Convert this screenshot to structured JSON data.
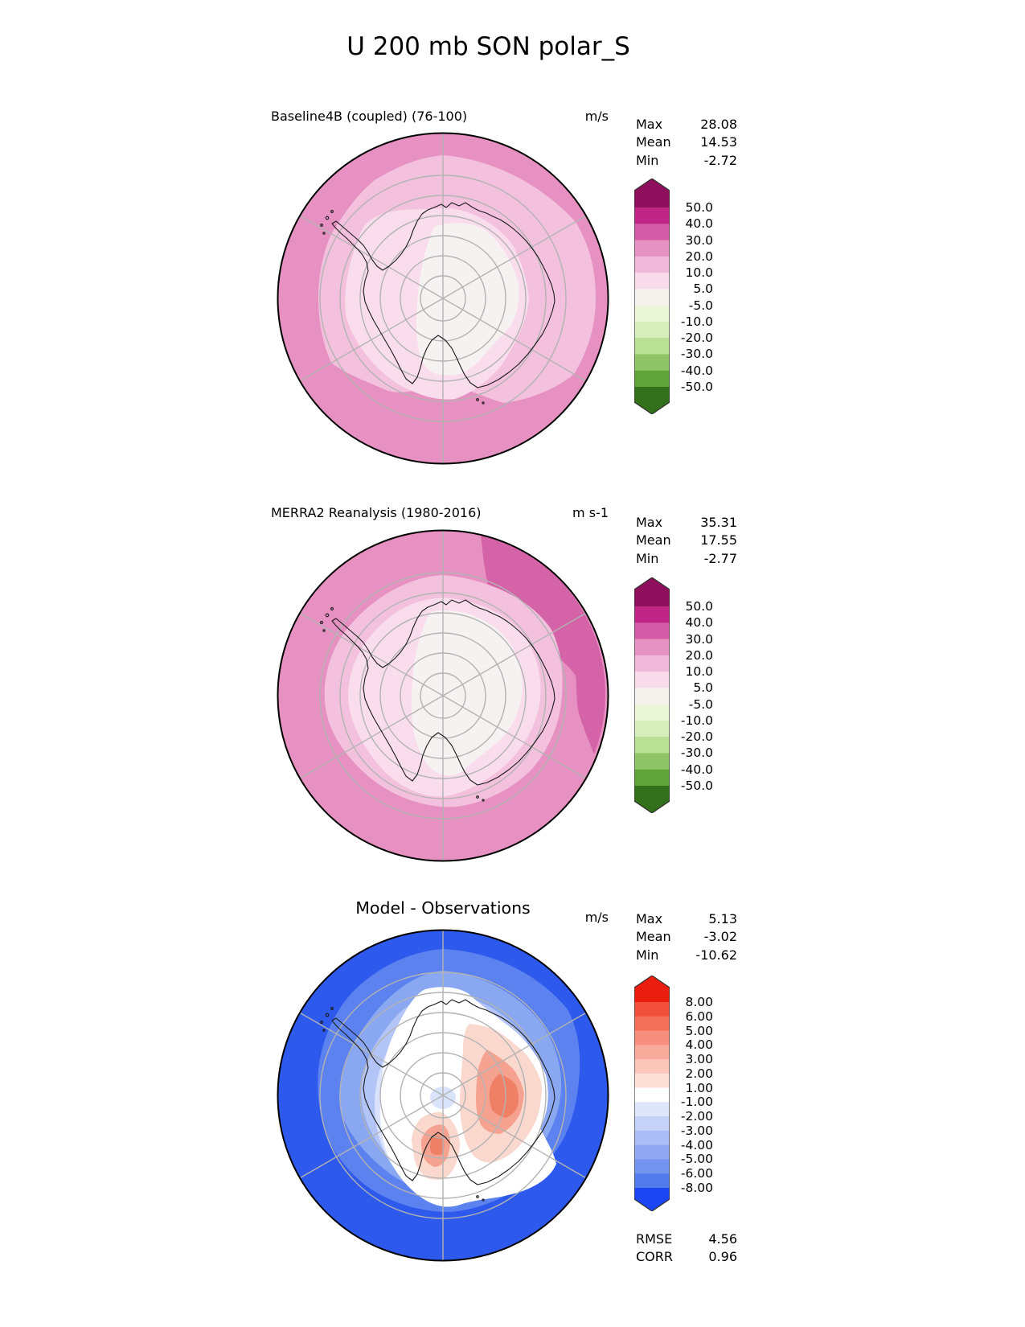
{
  "title": "U 200 mb SON polar_S",
  "panels": [
    {
      "title": "Baseline4B (coupled) (76-100)",
      "units": "m/s",
      "stats": [
        {
          "label": "Max",
          "value": "28.08"
        },
        {
          "label": "Mean",
          "value": "14.53"
        },
        {
          "label": "Min",
          "value": "-2.72"
        }
      ],
      "colorbar": {
        "ticks": [
          "50.0",
          "40.0",
          "30.0",
          "20.0",
          "10.0",
          "5.0",
          "-5.0",
          "-10.0",
          "-20.0",
          "-30.0",
          "-40.0",
          "-50.0"
        ],
        "colors": [
          "#8e0f5c",
          "#c02484",
          "#d45ba6",
          "#e591c1",
          "#f0b9da",
          "#f9dcec",
          "#f6f2ee",
          "#ebf5d8",
          "#d7edbb",
          "#b9e094",
          "#8fc566",
          "#5fa339",
          "#33701b"
        ]
      }
    },
    {
      "title": "MERRA2 Reanalysis (1980-2016)",
      "units": "m s-1",
      "stats": [
        {
          "label": "Max",
          "value": "35.31"
        },
        {
          "label": "Mean",
          "value": "17.55"
        },
        {
          "label": "Min",
          "value": "-2.77"
        }
      ],
      "colorbar": {
        "ticks": [
          "50.0",
          "40.0",
          "30.0",
          "20.0",
          "10.0",
          "5.0",
          "-5.0",
          "-10.0",
          "-20.0",
          "-30.0",
          "-40.0",
          "-50.0"
        ],
        "colors": [
          "#8e0f5c",
          "#c02484",
          "#d45ba6",
          "#e591c1",
          "#f0b9da",
          "#f9dcec",
          "#f6f2ee",
          "#ebf5d8",
          "#d7edbb",
          "#b9e094",
          "#8fc566",
          "#5fa339",
          "#33701b"
        ]
      }
    },
    {
      "title": "Model - Observations",
      "units": "m/s",
      "stats": [
        {
          "label": "Max",
          "value": "5.13"
        },
        {
          "label": "Mean",
          "value": "-3.02"
        },
        {
          "label": "Min",
          "value": "-10.62"
        }
      ],
      "colorbar": {
        "ticks": [
          "8.00",
          "6.00",
          "5.00",
          "4.00",
          "3.00",
          "2.00",
          "1.00",
          "-1.00",
          "-2.00",
          "-3.00",
          "-4.00",
          "-5.00",
          "-6.00",
          "-8.00"
        ],
        "colors": [
          "#eb1d0e",
          "#f2503d",
          "#f4705b",
          "#f68f7d",
          "#f8ab9b",
          "#fac7ba",
          "#fde1d9",
          "#ffffff",
          "#dfe6fa",
          "#c5d2f8",
          "#aabef5",
          "#90a9f2",
          "#7494ef",
          "#527bec",
          "#1c45f3"
        ]
      }
    }
  ],
  "footer": [
    {
      "label": "RMSE",
      "value": "4.56"
    },
    {
      "label": "CORR",
      "value": "0.96"
    }
  ],
  "map_colors": {
    "graticule": "#b3b3b3",
    "coast": "#1a1a1a",
    "p_ring": "#e691c1",
    "p_dark": "#d463a8",
    "p_light": "#f3c1de",
    "p_pale": "#fadded",
    "p_white": "#f7f2f2",
    "d_deep": "#2e59ed",
    "d_blue2": "#5c82ef",
    "d_blue3": "#8aa7f2",
    "d_blue4": "#b3c5f7",
    "d_blue5": "#d9e2fb",
    "d_white": "#ffffff",
    "d_red_pale": "#fbd8ce",
    "d_red_mid": "#f5a390",
    "d_red_core": "#ef8066",
    "d_pole_blue": "#d9e3fb"
  },
  "chart_data": [
    {
      "type": "heatmap",
      "subtype": "south-polar-stereographic-contour-map",
      "title": "Baseline4B (coupled) (76-100)",
      "variable": "U 200 mb SON polar_S",
      "units": "m/s",
      "levels": [
        50.0,
        40.0,
        30.0,
        20.0,
        10.0,
        5.0,
        -5.0,
        -10.0,
        -20.0,
        -30.0,
        -40.0,
        -50.0
      ],
      "stats": {
        "max": 28.08,
        "mean": 14.53,
        "min": -2.72
      },
      "legend_position": "right",
      "palette": "pink-to-green diverging"
    },
    {
      "type": "heatmap",
      "subtype": "south-polar-stereographic-contour-map",
      "title": "MERRA2 Reanalysis (1980-2016)",
      "variable": "U 200 mb SON polar_S",
      "units": "m s-1",
      "levels": [
        50.0,
        40.0,
        30.0,
        20.0,
        10.0,
        5.0,
        -5.0,
        -10.0,
        -20.0,
        -30.0,
        -40.0,
        -50.0
      ],
      "stats": {
        "max": 35.31,
        "mean": 17.55,
        "min": -2.77
      },
      "legend_position": "right",
      "palette": "pink-to-green diverging"
    },
    {
      "type": "heatmap",
      "subtype": "south-polar-stereographic-contour-map",
      "title": "Model - Observations",
      "variable": "U 200 mb SON polar_S",
      "units": "m/s",
      "levels": [
        8.0,
        6.0,
        5.0,
        4.0,
        3.0,
        2.0,
        1.0,
        -1.0,
        -2.0,
        -3.0,
        -4.0,
        -5.0,
        -6.0,
        -8.0
      ],
      "stats": {
        "max": 5.13,
        "mean": -3.02,
        "min": -10.62,
        "rmse": 4.56,
        "corr": 0.96
      },
      "legend_position": "right",
      "palette": "red-to-blue diverging"
    }
  ]
}
